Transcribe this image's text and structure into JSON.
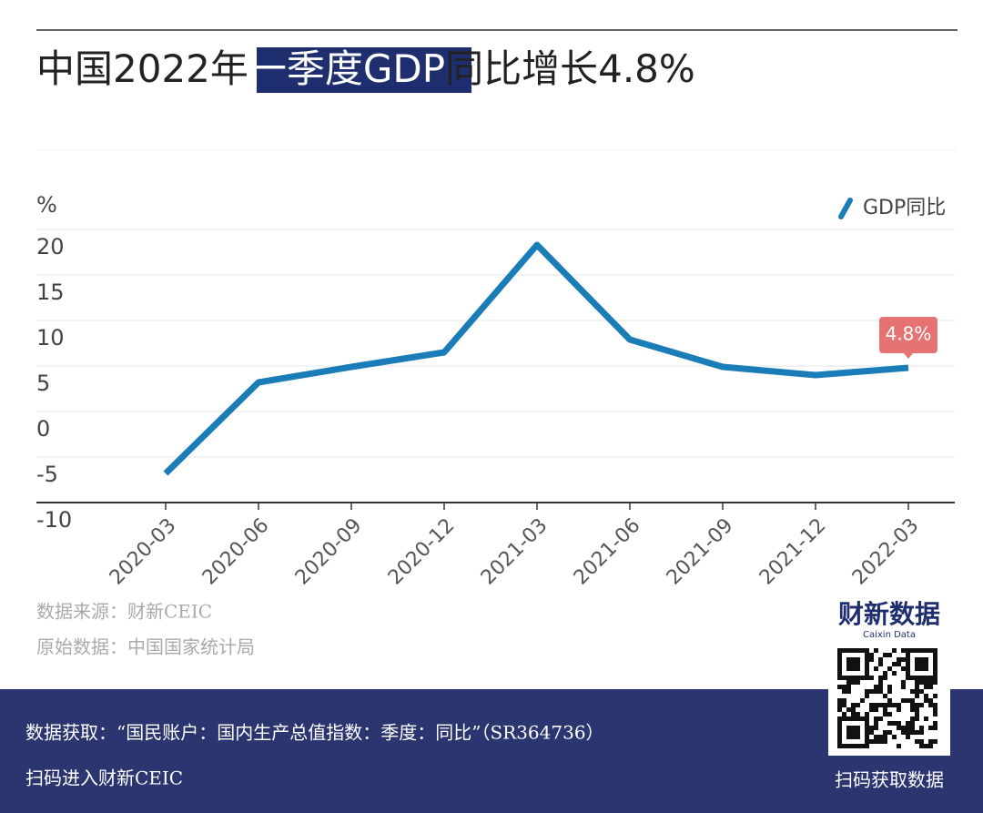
{
  "chart_data": {
    "type": "line",
    "title_parts": [
      "中国2022年",
      "一季度GDP",
      "同比增长4.8%"
    ],
    "y_label": "%",
    "categories": [
      "2020-03",
      "2020-06",
      "2020-09",
      "2020-12",
      "2021-03",
      "2021-06",
      "2021-09",
      "2021-12",
      "2022-03"
    ],
    "series": [
      {
        "name": "GDP同比",
        "color": "#1a7db8",
        "values": [
          -6.8,
          3.2,
          4.9,
          6.5,
          18.3,
          7.9,
          4.9,
          4.0,
          4.8
        ],
        "value_labels": [
          null,
          null,
          null,
          null,
          null,
          null,
          null,
          null,
          "4.8%"
        ]
      }
    ],
    "ylim": [
      -10,
      20
    ],
    "yticks": [
      -10,
      -5,
      0,
      5,
      10,
      15,
      20
    ],
    "grid": true,
    "legend": "top-right"
  },
  "footer": {
    "source": "数据来源：财新CEIC",
    "origin": "原始数据：中国国家统计局",
    "brand": "财新数据",
    "brand_en": "Caixin Data",
    "access": "数据获取：“国民账户：国内生产总值指数：季度：同比”（SR364736）",
    "scan_left": "扫码进入财新CEIC",
    "scan_right": "扫码获取数据"
  }
}
